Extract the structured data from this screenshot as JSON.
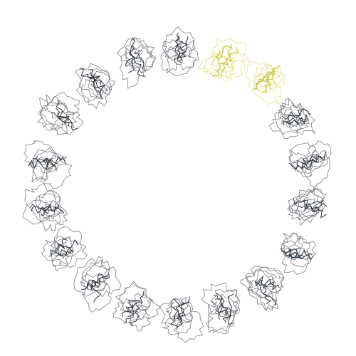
{
  "figure": {
    "subject": "ring-of-protein-subunits",
    "subunit_count": 18,
    "colors": {
      "background": "#ffffff",
      "outline": "#7d7d86",
      "backbone": "#2c3640",
      "highlight_outline": "#e6e28a",
      "highlight_backbone": "#c7c43c"
    },
    "highlighted_subunits": [
      1,
      2
    ]
  }
}
